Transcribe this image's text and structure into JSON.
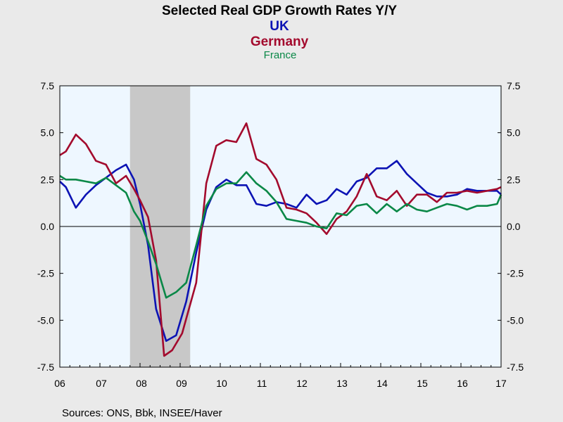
{
  "chart_data": {
    "type": "line",
    "title": "Selected Real GDP Growth Rates Y/Y",
    "legend": {
      "placement": "top-center"
    },
    "ylim": [
      -7.5,
      7.5
    ],
    "y_ticks": [
      "7.5",
      "5.0",
      "2.5",
      "0.0",
      "-2.5",
      "-5.0",
      "-7.5"
    ],
    "y_tick_values": [
      7.5,
      5.0,
      2.5,
      0.0,
      -2.5,
      -5.0,
      -7.5
    ],
    "x_ticks": [
      "06",
      "07",
      "08",
      "09",
      "10",
      "11",
      "12",
      "13",
      "14",
      "15",
      "16",
      "17"
    ],
    "x_tick_values": [
      2006,
      2007,
      2008,
      2009,
      2010,
      2011,
      2012,
      2013,
      2014,
      2015,
      2016,
      2017
    ],
    "xlim": [
      2006,
      2017
    ],
    "recession_shading": [
      2007.75,
      2009.25
    ],
    "zero_line": true,
    "grid": false,
    "source": "Sources:  ONS, Bbk, INSEE/Haver",
    "series": [
      {
        "name": "UK",
        "color": "#0c13b4",
        "x": [
          2006.0,
          2006.15,
          2006.4,
          2006.65,
          2006.9,
          2007.15,
          2007.4,
          2007.65,
          2007.85,
          2008.0,
          2008.2,
          2008.4,
          2008.65,
          2008.9,
          2009.15,
          2009.4,
          2009.65,
          2009.9,
          2010.15,
          2010.4,
          2010.65,
          2010.9,
          2011.15,
          2011.4,
          2011.65,
          2011.9,
          2012.15,
          2012.4,
          2012.65,
          2012.9,
          2013.15,
          2013.4,
          2013.65,
          2013.9,
          2014.15,
          2014.4,
          2014.65,
          2014.9,
          2015.15,
          2015.4,
          2015.65,
          2015.9,
          2016.15,
          2016.4,
          2016.65,
          2016.9,
          2017.0
        ],
        "y": [
          2.4,
          2.1,
          1.0,
          1.7,
          2.2,
          2.6,
          3.0,
          3.3,
          2.5,
          1.2,
          -1.0,
          -4.4,
          -6.1,
          -5.8,
          -4.0,
          -1.4,
          0.9,
          2.1,
          2.5,
          2.2,
          2.2,
          1.2,
          1.1,
          1.3,
          1.2,
          1.0,
          1.7,
          1.2,
          1.4,
          2.0,
          1.7,
          2.4,
          2.6,
          3.1,
          3.1,
          3.5,
          2.8,
          2.3,
          1.8,
          1.6,
          1.6,
          1.7,
          2.0,
          1.9,
          1.9,
          1.9,
          1.7
        ]
      },
      {
        "name": "Germany",
        "color": "#a30a2d",
        "x": [
          2006.0,
          2006.15,
          2006.4,
          2006.65,
          2006.9,
          2007.15,
          2007.4,
          2007.65,
          2007.85,
          2008.0,
          2008.2,
          2008.4,
          2008.6,
          2008.8,
          2009.05,
          2009.4,
          2009.65,
          2009.9,
          2010.15,
          2010.4,
          2010.65,
          2010.9,
          2011.15,
          2011.4,
          2011.65,
          2011.9,
          2012.15,
          2012.4,
          2012.65,
          2012.9,
          2013.15,
          2013.4,
          2013.65,
          2013.9,
          2014.15,
          2014.4,
          2014.65,
          2014.9,
          2015.15,
          2015.4,
          2015.65,
          2015.9,
          2016.15,
          2016.4,
          2016.65,
          2016.9,
          2017.0
        ],
        "y": [
          3.8,
          4.0,
          4.9,
          4.4,
          3.5,
          3.3,
          2.3,
          2.7,
          2.0,
          1.4,
          0.5,
          -1.8,
          -6.9,
          -6.6,
          -5.7,
          -3.0,
          2.3,
          4.3,
          4.6,
          4.5,
          5.5,
          3.6,
          3.3,
          2.5,
          1.0,
          0.9,
          0.7,
          0.2,
          -0.4,
          0.4,
          0.8,
          1.6,
          2.8,
          1.6,
          1.4,
          1.9,
          1.1,
          1.7,
          1.7,
          1.3,
          1.8,
          1.8,
          1.9,
          1.8,
          1.9,
          2.0,
          2.1
        ]
      },
      {
        "name": "France",
        "color": "#0a8847",
        "x": [
          2006.0,
          2006.15,
          2006.4,
          2006.65,
          2006.9,
          2007.15,
          2007.4,
          2007.65,
          2007.85,
          2008.0,
          2008.2,
          2008.4,
          2008.65,
          2008.9,
          2009.15,
          2009.4,
          2009.65,
          2009.9,
          2010.15,
          2010.4,
          2010.65,
          2010.9,
          2011.15,
          2011.4,
          2011.65,
          2011.9,
          2012.15,
          2012.4,
          2012.65,
          2012.9,
          2013.15,
          2013.4,
          2013.65,
          2013.9,
          2014.15,
          2014.4,
          2014.65,
          2014.9,
          2015.15,
          2015.4,
          2015.65,
          2015.9,
          2016.15,
          2016.4,
          2016.65,
          2016.9,
          2017.0
        ],
        "y": [
          2.7,
          2.5,
          2.5,
          2.4,
          2.3,
          2.6,
          2.2,
          1.8,
          0.8,
          0.3,
          -0.8,
          -2.0,
          -3.8,
          -3.5,
          -3.0,
          -1.0,
          1.1,
          2.0,
          2.3,
          2.3,
          2.9,
          2.3,
          1.9,
          1.3,
          0.4,
          0.3,
          0.2,
          0.0,
          -0.1,
          0.7,
          0.6,
          1.1,
          1.2,
          0.7,
          1.2,
          0.8,
          1.2,
          0.9,
          0.8,
          1.0,
          1.2,
          1.1,
          0.9,
          1.1,
          1.1,
          1.2,
          1.7
        ]
      }
    ]
  }
}
